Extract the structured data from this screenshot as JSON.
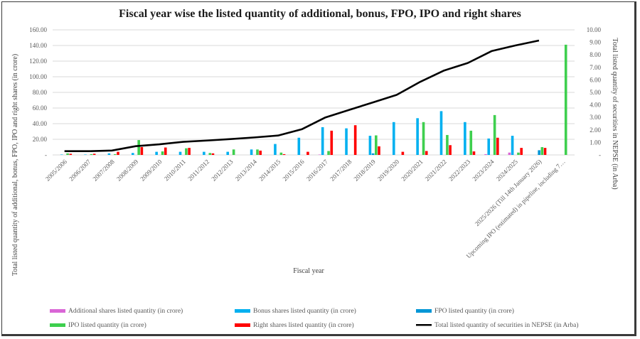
{
  "chart_data": {
    "type": "bar",
    "title": "Fiscal year wise the listed quantity of  additional, bonus, FPO, IPO and right shares",
    "xlabel": "Fiscal year",
    "ylabel": "Total listed quantity of additional, bonus, FPO, IPO and right shares (in crore)",
    "y2label": "Total listed quantity of securities in NEPSE (in Arba)",
    "ylim": [
      0,
      160
    ],
    "y2lim": [
      0,
      10
    ],
    "yticks": [
      "-",
      "20.00",
      "40.00",
      "60.00",
      "80.00",
      "100.00",
      "120.00",
      "140.00",
      "160.00"
    ],
    "y2ticks": [
      "-",
      "1.00",
      "2.00",
      "3.00",
      "4.00",
      "5.00",
      "6.00",
      "7.00",
      "8.00",
      "9.00",
      "10.00"
    ],
    "grid": true,
    "legend_position": "bottom",
    "categories": [
      "2005/2006",
      "2006/2007",
      "2007/2008",
      "2008/2009",
      "2009/2010",
      "2010/2011",
      "2011/2012",
      "2012/2013",
      "2013/2014",
      "2014/2015",
      "2015/2016",
      "2016/2017",
      "2017/2018",
      "2018/2019",
      "2019/2020",
      "2020/2021",
      "2021/2022",
      "2022/2023",
      "2023/2024",
      "2024/2025",
      "2025/2026 (Till 14th January 2026)",
      "Upcoming IPO (estimated) in pipeline, including 7…"
    ],
    "series": [
      {
        "name": "Additional shares listed quantity (in crore)",
        "type": "bar",
        "axis": "left",
        "color": "#d966d6",
        "values": [
          0,
          0,
          0,
          0,
          0,
          0,
          0,
          0,
          0,
          0,
          0,
          0.5,
          0,
          0,
          0,
          0,
          0,
          0,
          1,
          3,
          0,
          0
        ]
      },
      {
        "name": "Bonus shares listed quantity (in crore)",
        "type": "bar",
        "axis": "left",
        "color": "#00b0f0",
        "values": [
          0.5,
          0.5,
          2,
          2.5,
          4,
          4,
          4,
          4,
          7,
          14,
          22,
          35.5,
          34,
          24.5,
          42,
          47,
          56,
          42,
          21,
          24.5,
          0,
          0
        ]
      },
      {
        "name": "FPO listed quantity (in crore)",
        "type": "bar",
        "axis": "left",
        "color": "#0096d6",
        "values": [
          0,
          0,
          0,
          0,
          0,
          0,
          0,
          0,
          0,
          0,
          0,
          0,
          0,
          2,
          0,
          0,
          0,
          0,
          0,
          0,
          6,
          0
        ]
      },
      {
        "name": "IPO listed quantity (in crore)",
        "type": "bar",
        "axis": "left",
        "color": "#3ecf4e",
        "values": [
          2,
          1,
          1,
          19,
          4.5,
          8.5,
          2.5,
          7,
          7,
          3,
          0,
          5,
          0,
          25,
          0,
          42,
          25.5,
          31,
          51,
          3,
          10,
          141
        ]
      },
      {
        "name": "Right shares listed quantity (in crore)",
        "type": "bar",
        "axis": "left",
        "color": "#ff0000",
        "values": [
          1.5,
          1.5,
          4,
          10,
          9.5,
          9,
          2,
          0,
          5.5,
          1,
          4,
          31,
          38,
          11,
          4,
          5,
          12.5,
          4.5,
          22,
          9,
          9,
          0
        ]
      },
      {
        "name": "Total listed quantity of securities in NEPSE (in Arba)",
        "type": "line",
        "axis": "right",
        "color": "#000000",
        "values": [
          0.3,
          0.3,
          0.35,
          0.7,
          0.85,
          1.05,
          1.15,
          1.27,
          1.4,
          1.55,
          2.05,
          3.0,
          3.6,
          4.2,
          4.8,
          5.85,
          6.75,
          7.35,
          8.3,
          8.75,
          9.15,
          null
        ]
      }
    ]
  }
}
